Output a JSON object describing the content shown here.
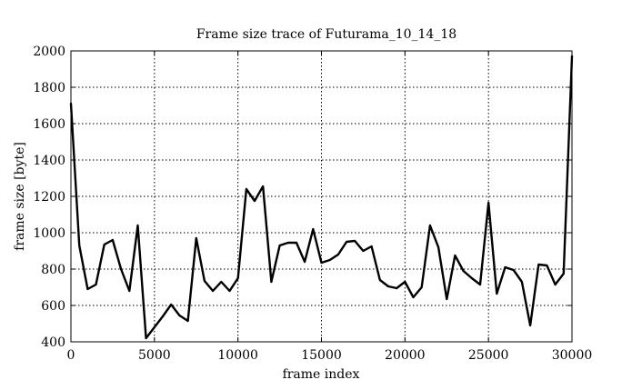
{
  "chart_data": {
    "type": "line",
    "title": "Frame size trace of Futurama_10_14_18",
    "xlabel": "frame index",
    "ylabel": "frame size [byte]",
    "xlim": [
      0,
      30000
    ],
    "ylim": [
      400,
      2000
    ],
    "xticks": [
      0,
      5000,
      10000,
      15000,
      20000,
      25000,
      30000
    ],
    "yticks": [
      400,
      600,
      800,
      1000,
      1200,
      1400,
      1600,
      1800,
      2000
    ],
    "grid": true,
    "grid_style": "dotted",
    "series": [
      {
        "color": "#000000",
        "x": [
          0,
          500,
          1000,
          1500,
          2000,
          2500,
          3000,
          3500,
          4000,
          4500,
          5000,
          5500,
          6000,
          6500,
          7000,
          7500,
          8000,
          8500,
          9000,
          9500,
          10000,
          10500,
          11000,
          11500,
          12000,
          12500,
          13000,
          13500,
          14000,
          14500,
          15000,
          15500,
          16000,
          16500,
          17000,
          17500,
          18000,
          18500,
          19000,
          19500,
          20000,
          20500,
          21000,
          21500,
          22000,
          22500,
          23000,
          23500,
          24000,
          24500,
          25000,
          25500,
          26000,
          26500,
          27000,
          27500,
          28000,
          28500,
          29000,
          29500,
          30000
        ],
        "values": [
          1710,
          930,
          690,
          715,
          935,
          960,
          800,
          680,
          1040,
          420,
          480,
          540,
          605,
          545,
          515,
          970,
          735,
          680,
          730,
          680,
          750,
          1240,
          1175,
          1255,
          730,
          930,
          945,
          945,
          840,
          1020,
          835,
          850,
          880,
          950,
          955,
          900,
          925,
          740,
          705,
          695,
          730,
          645,
          700,
          1040,
          920,
          635,
          875,
          790,
          750,
          715,
          1165,
          665,
          810,
          795,
          730,
          490,
          825,
          820,
          715,
          775,
          1970
        ]
      }
    ]
  }
}
